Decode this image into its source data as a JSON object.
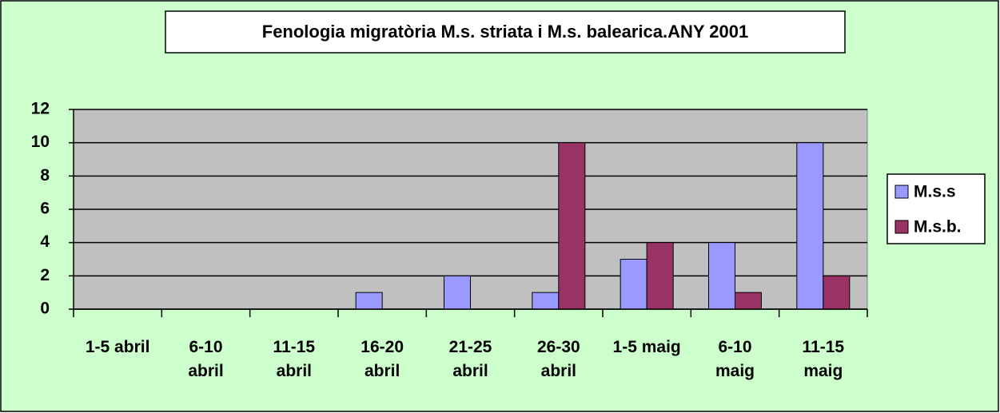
{
  "chart_data": {
    "type": "bar",
    "title": "Fenologia migratòria M.s. striata i M.s. balearica.ANY 2001",
    "categories": [
      "1-5 abril",
      "6-10 abril",
      "11-15 abril",
      "16-20 abril",
      "21-25 abril",
      "26-30 abril",
      "1-5 maig",
      "6-10 maig",
      "11-15 maig"
    ],
    "series": [
      {
        "name": "M.s.s",
        "color": "#9999ff",
        "values": [
          0,
          0,
          0,
          1,
          2,
          1,
          3,
          4,
          10
        ]
      },
      {
        "name": "M.s.b.",
        "color": "#993366",
        "values": [
          0,
          0,
          0,
          0,
          0,
          10,
          4,
          1,
          2
        ]
      }
    ],
    "ylim": [
      0,
      12
    ],
    "yticks": [
      0,
      2,
      4,
      6,
      8,
      10,
      12
    ],
    "grid": true,
    "legend": "right"
  }
}
